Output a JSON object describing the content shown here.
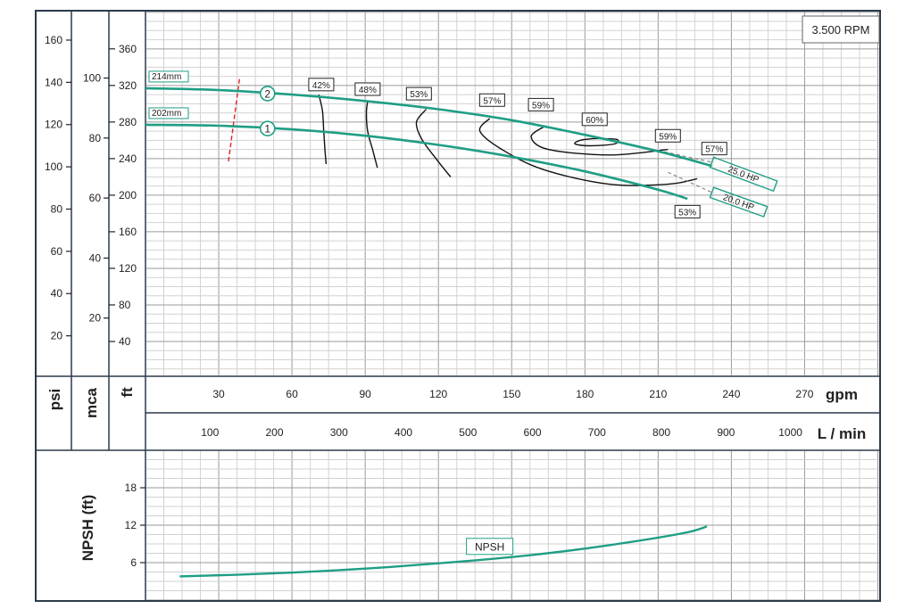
{
  "speed_label": "3.500 RPM",
  "units": {
    "psi": "psi",
    "mca": "mca",
    "ft": "ft",
    "gpm": "gpm",
    "lmin": "L / min",
    "npsh": "NPSH (ft)"
  },
  "colors": {
    "curve": "#1f9e84",
    "iso": "#111111",
    "grid_major": "#9a9a9a",
    "grid_minor": "#d2d2d2",
    "frame": "#2b3a4a",
    "cut_line": "#e02020"
  },
  "chart_data": [
    {
      "type": "line",
      "title": "",
      "x_axis": {
        "label": "gpm",
        "min": 0,
        "max": 280,
        "ticks": [
          30,
          60,
          90,
          120,
          150,
          180,
          210,
          240,
          270
        ]
      },
      "x2_axis": {
        "label": "L / min",
        "ticks": [
          100,
          200,
          300,
          400,
          500,
          600,
          700,
          800,
          900,
          1000
        ]
      },
      "y_axis": {
        "label": "ft",
        "min": 0,
        "max": 380,
        "ticks": [
          40,
          80,
          120,
          160,
          200,
          240,
          280,
          320,
          360
        ]
      },
      "y_psi": {
        "label": "psi",
        "ticks": [
          20,
          40,
          60,
          80,
          100,
          120,
          140,
          160
        ]
      },
      "y_mca": {
        "label": "mca",
        "ticks": [
          20,
          40,
          60,
          80,
          100
        ]
      },
      "series": [
        {
          "name": "214mm",
          "marker": "2",
          "x": [
            0,
            30,
            60,
            90,
            120,
            150,
            180,
            210,
            232
          ],
          "y": [
            317,
            315,
            310,
            303,
            294,
            282,
            266,
            248,
            232
          ]
        },
        {
          "name": "202mm",
          "marker": "1",
          "x": [
            0,
            30,
            60,
            90,
            120,
            150,
            180,
            210,
            222
          ],
          "y": [
            277,
            276,
            272,
            265,
            255,
            242,
            226,
            206,
            196
          ]
        }
      ],
      "efficiency_lines": [
        {
          "label": "42%",
          "x": [
            71,
            72.5,
            73,
            73.5,
            74
          ],
          "y": [
            310,
            292,
            270,
            250,
            234
          ]
        },
        {
          "label": "48%",
          "x": [
            91,
            90.5,
            91,
            93,
            95
          ],
          "y": [
            303,
            290,
            270,
            250,
            230
          ]
        },
        {
          "label": "53%",
          "x": [
            115,
            111,
            113,
            119,
            125
          ],
          "y": [
            294,
            280,
            262,
            240,
            220
          ]
        },
        {
          "label": "57%",
          "x": [
            141,
            137,
            146,
            163,
            190,
            214,
            226
          ],
          "y": [
            284,
            270,
            250,
            228,
            212,
            212,
            218
          ]
        },
        {
          "label": "59%",
          "x": [
            164,
            158,
            165,
            190,
            214
          ],
          "y": [
            276,
            264,
            250,
            244,
            250
          ]
        },
        {
          "label": "60%",
          "x": [
            184,
            178,
            176,
            182,
            192,
            193,
            184
          ],
          "y": [
            262,
            260,
            256,
            254,
            256,
            261,
            262
          ]
        }
      ],
      "efficiency_labels": [
        "42%",
        "48%",
        "53%",
        "57%",
        "59%",
        "60%",
        "59%",
        "57%",
        "53%"
      ],
      "power_lines": [
        {
          "label": "25.0 HP",
          "x": [
            205,
            232,
            258
          ],
          "y": [
            252,
            236,
            210
          ]
        },
        {
          "label": "20.0 HP",
          "x": [
            214,
            232,
            254
          ],
          "y": [
            225,
            203,
            182
          ]
        }
      ],
      "diameter_labels": [
        "214mm",
        "202mm"
      ],
      "cut_line": {
        "x": [
          34,
          38.5
        ],
        "y": [
          237,
          327
        ]
      }
    },
    {
      "type": "line",
      "title": "",
      "x_axis": {
        "label": "gpm",
        "min": 0,
        "max": 280
      },
      "y_axis": {
        "label": "NPSH (ft)",
        "min": 0,
        "max": 22,
        "ticks": [
          6,
          12,
          18
        ]
      },
      "series": [
        {
          "name": "NPSH",
          "x": [
            14,
            40,
            70,
            100,
            130,
            160,
            190,
            220,
            230
          ],
          "y": [
            3.8,
            4.1,
            4.6,
            5.3,
            6.2,
            7.3,
            8.8,
            10.7,
            11.8
          ]
        }
      ]
    }
  ]
}
